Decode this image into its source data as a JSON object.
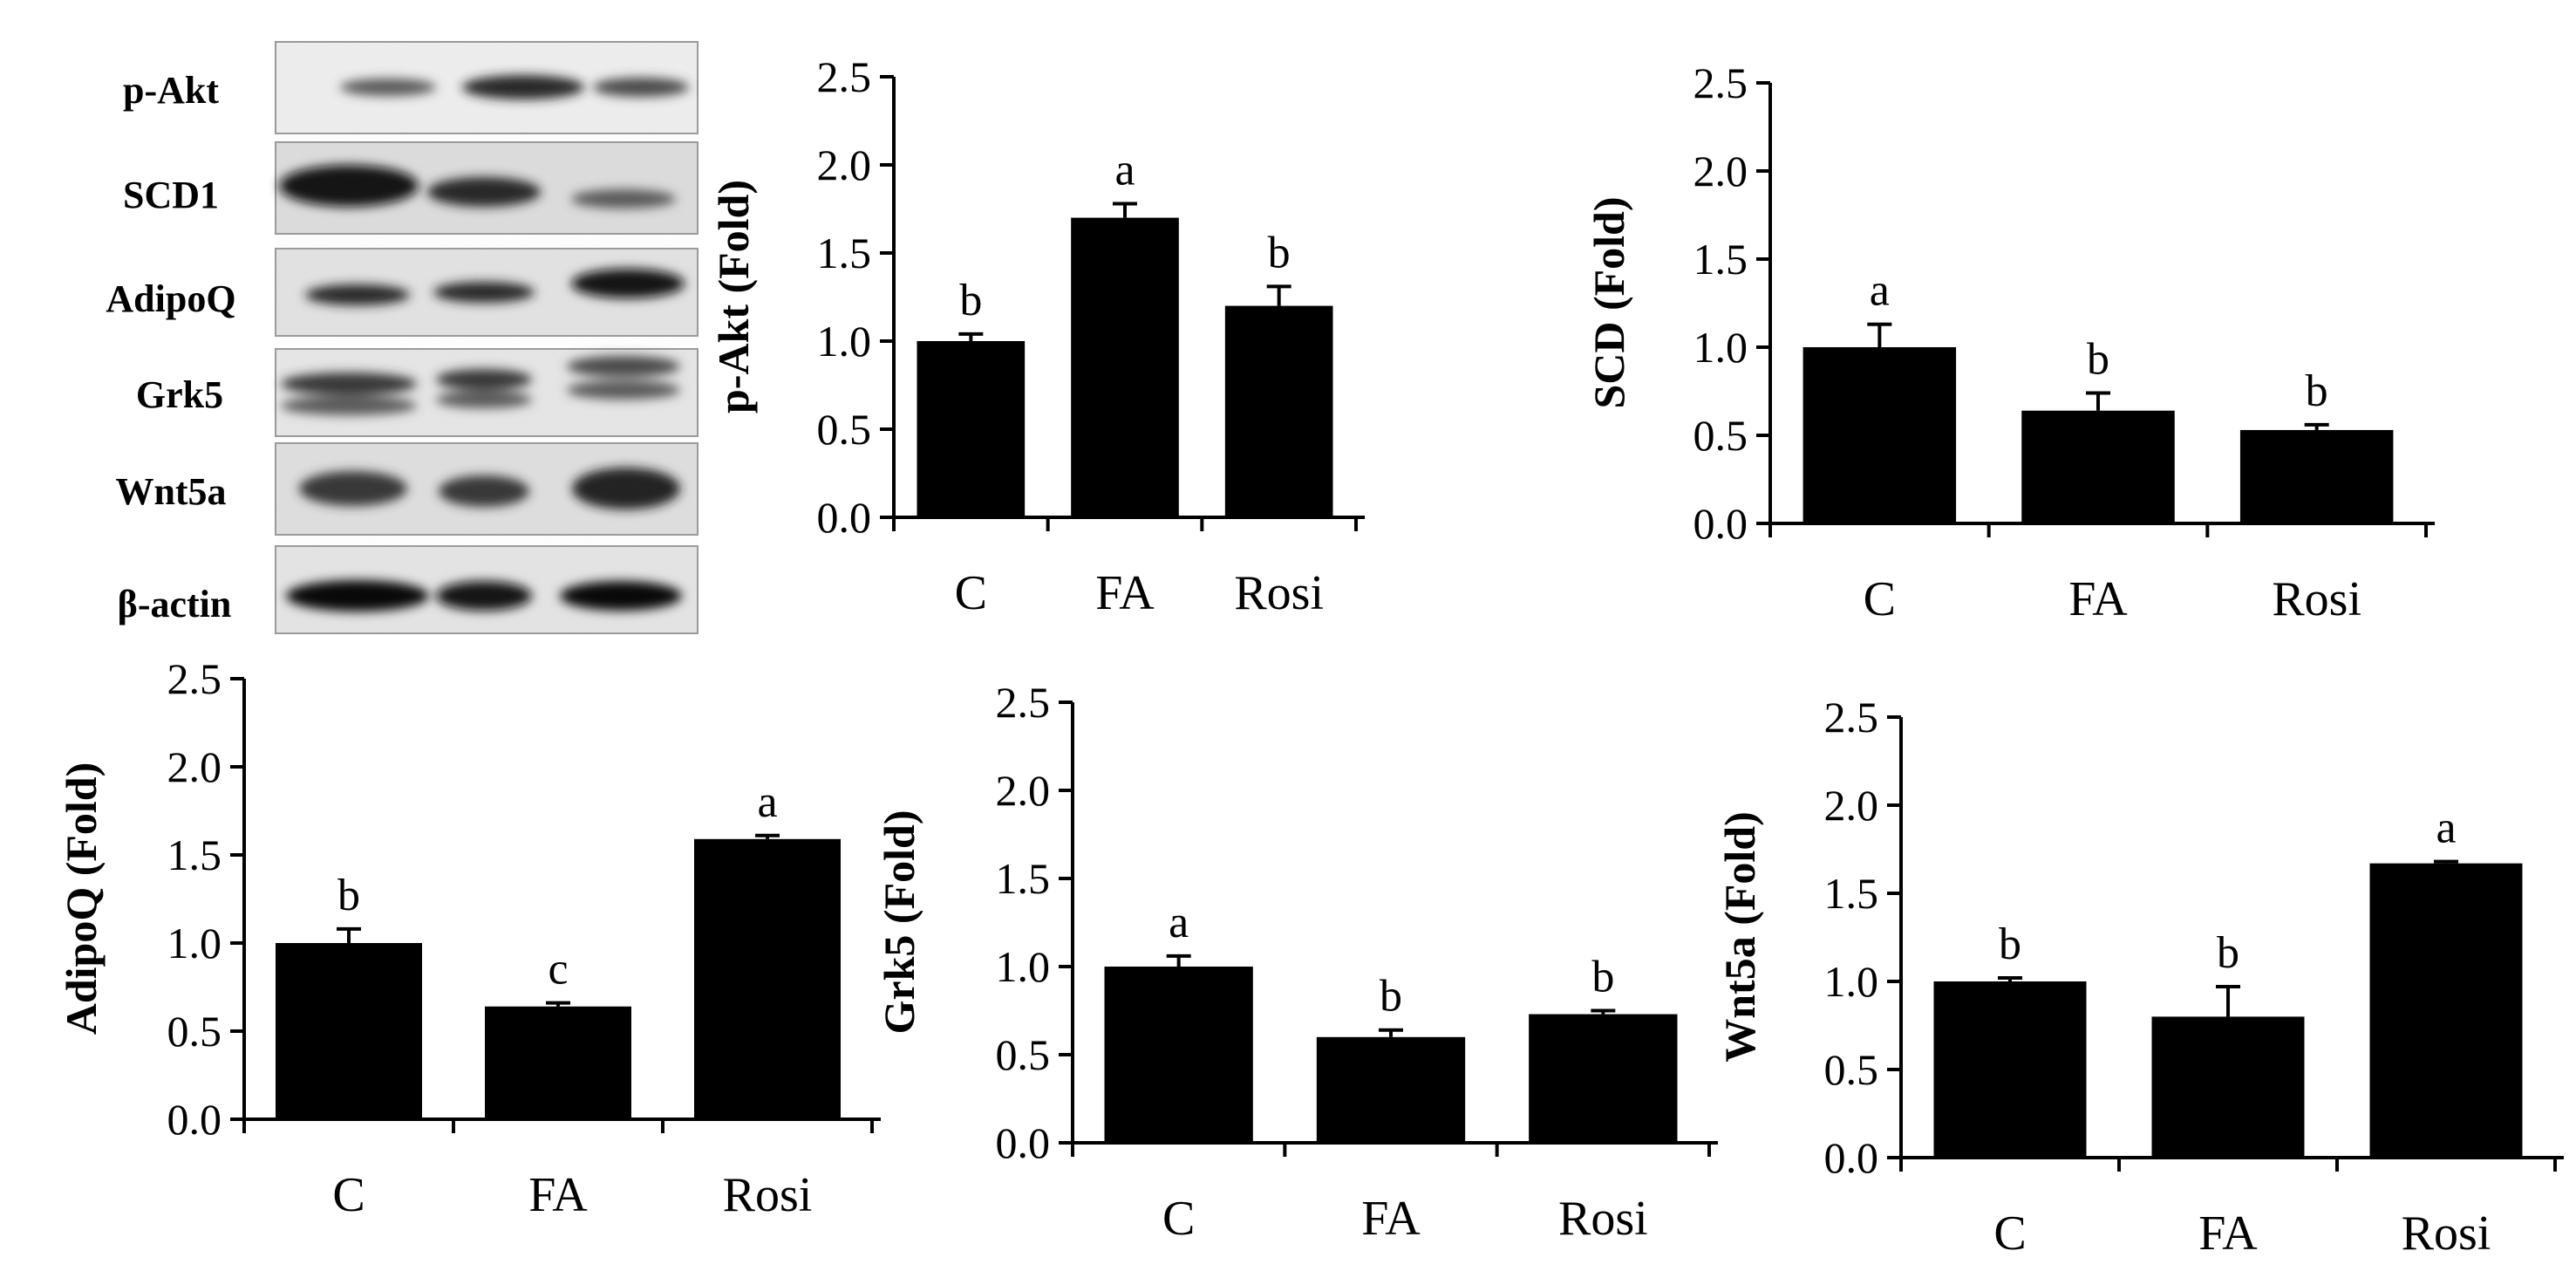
{
  "blot": {
    "labels": [
      "p-Akt",
      "SCD1",
      "AdipoQ",
      "Grk5",
      "Wnt5a",
      "β-actin"
    ]
  },
  "chart_data": [
    {
      "type": "bar",
      "title": "",
      "xlabel": "",
      "ylabel": "p-Akt (Fold)",
      "categories": [
        "C",
        "FA",
        "Rosi"
      ],
      "values": [
        1.0,
        1.7,
        1.2
      ],
      "errors": [
        0.04,
        0.08,
        0.11
      ],
      "significance": [
        "b",
        "a",
        "b"
      ],
      "ylim": [
        0,
        2.5
      ],
      "yticks": [
        "0.0",
        "0.5",
        "1.0",
        "1.5",
        "2.0",
        "2.5"
      ],
      "grid": false
    },
    {
      "type": "bar",
      "title": "",
      "xlabel": "",
      "ylabel": "SCD (Fold)",
      "categories": [
        "C",
        "FA",
        "Rosi"
      ],
      "values": [
        1.0,
        0.64,
        0.53
      ],
      "errors": [
        0.13,
        0.1,
        0.03
      ],
      "significance": [
        "a",
        "b",
        "b"
      ],
      "ylim": [
        0,
        2.5
      ],
      "yticks": [
        "0.0",
        "0.5",
        "1.0",
        "1.5",
        "2.0",
        "2.5"
      ],
      "grid": false
    },
    {
      "type": "bar",
      "title": "",
      "xlabel": "",
      "ylabel": "AdipoQ (Fold)",
      "categories": [
        "C",
        "FA",
        "Rosi"
      ],
      "values": [
        1.0,
        0.64,
        1.59
      ],
      "errors": [
        0.08,
        0.02,
        0.02
      ],
      "significance": [
        "b",
        "c",
        "a"
      ],
      "ylim": [
        0,
        2.5
      ],
      "yticks": [
        "0.0",
        "0.5",
        "1.0",
        "1.5",
        "2.0",
        "2.5"
      ],
      "grid": false
    },
    {
      "type": "bar",
      "title": "",
      "xlabel": "",
      "ylabel": "Grk5 (Fold)",
      "categories": [
        "C",
        "FA",
        "Rosi"
      ],
      "values": [
        1.0,
        0.6,
        0.73
      ],
      "errors": [
        0.06,
        0.04,
        0.02
      ],
      "significance": [
        "a",
        "b",
        "b"
      ],
      "ylim": [
        0,
        2.5
      ],
      "yticks": [
        "0.0",
        "0.5",
        "1.0",
        "1.5",
        "2.0",
        "2.5"
      ],
      "grid": false
    },
    {
      "type": "bar",
      "title": "",
      "xlabel": "",
      "ylabel": "Wnt5a (Fold)",
      "categories": [
        "C",
        "FA",
        "Rosi"
      ],
      "values": [
        1.0,
        0.8,
        1.67
      ],
      "errors": [
        0.02,
        0.17,
        0.01
      ],
      "significance": [
        "b",
        "b",
        "a"
      ],
      "ylim": [
        0,
        2.5
      ],
      "yticks": [
        "0.0",
        "0.5",
        "1.0",
        "1.5",
        "2.0",
        "2.5"
      ],
      "grid": false
    }
  ]
}
